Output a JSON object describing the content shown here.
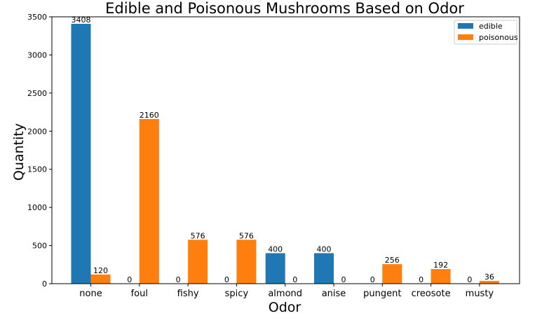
{
  "chart_data": {
    "type": "bar",
    "title": "Edible and Poisonous Mushrooms Based on Odor",
    "xlabel": "Odor",
    "ylabel": "Quantity",
    "categories": [
      "none",
      "foul",
      "fishy",
      "spicy",
      "almond",
      "anise",
      "pungent",
      "creosote",
      "musty"
    ],
    "series": [
      {
        "name": "edible",
        "color": "#1f77b4",
        "values": [
          3408,
          0,
          0,
          0,
          400,
          400,
          0,
          0,
          0
        ]
      },
      {
        "name": "poisonous",
        "color": "#ff7f0e",
        "values": [
          120,
          2160,
          576,
          576,
          0,
          0,
          256,
          192,
          36
        ]
      }
    ],
    "ylim": [
      0,
      3500
    ],
    "yticks": [
      0,
      500,
      1000,
      1500,
      2000,
      2500,
      3000,
      3500
    ],
    "legend_position": "top-right",
    "grid": false
  }
}
